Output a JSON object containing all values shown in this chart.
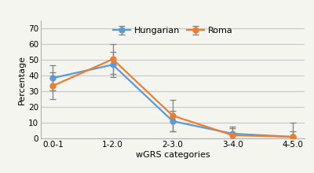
{
  "categories": [
    "0.0-1",
    "1-2.0",
    "2-3.0",
    "3-4.0",
    "4-5.0"
  ],
  "hungarian_values": [
    38.5,
    47.0,
    11.0,
    3.0,
    1.0
  ],
  "roma_values": [
    33.5,
    50.5,
    14.5,
    2.0,
    1.0
  ],
  "hungarian_errors": [
    8.0,
    8.0,
    6.5,
    3.5,
    3.5
  ],
  "roma_errors": [
    8.5,
    9.5,
    10.0,
    5.5,
    9.0
  ],
  "hungarian_color": "#5b9bd5",
  "roma_color": "#ed7d31",
  "xlabel": "wGRS categories",
  "ylabel": "Percentage",
  "ylim": [
    0,
    75
  ],
  "yticks": [
    0,
    10,
    20,
    30,
    40,
    50,
    60,
    70
  ],
  "legend_labels": [
    "Hungarian",
    "Roma"
  ],
  "background_color": "#f5f5f0",
  "plot_bg_color": "#f5f5f0",
  "grid_color": "#c8c8c8",
  "error_color": "#808080",
  "marker": "o",
  "marker_size": 5,
  "line_width": 1.6
}
